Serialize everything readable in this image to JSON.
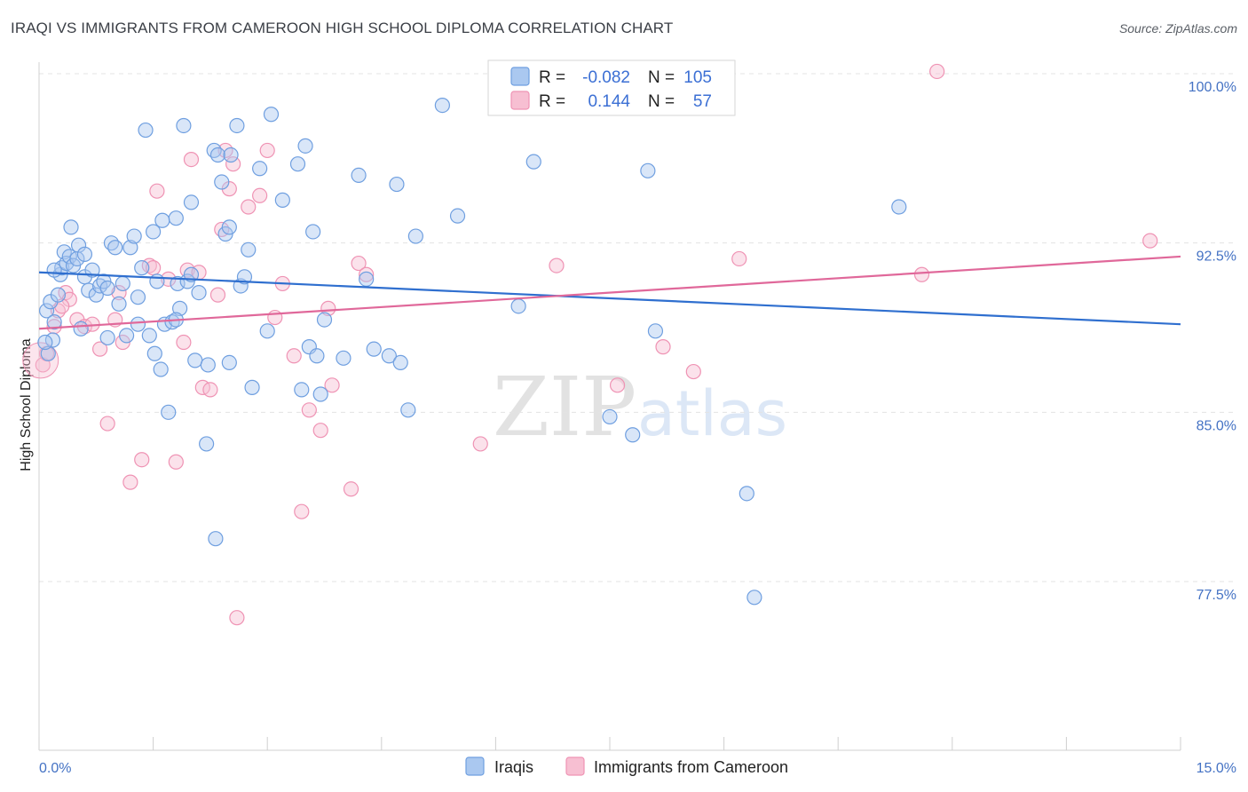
{
  "title": "IRAQI VS IMMIGRANTS FROM CAMEROON HIGH SCHOOL DIPLOMA CORRELATION CHART",
  "source": "Source: ZipAtlas.com",
  "watermark": {
    "zip": "ZIP",
    "atlas": "atlas"
  },
  "legend": {
    "row1": {
      "r_label": "R =",
      "r_value": "-0.082",
      "n_label": "N =",
      "n_value": "105"
    },
    "row2": {
      "r_label": "R =",
      "r_value": "0.144",
      "n_label": "N =",
      "n_value": "57"
    }
  },
  "bottom_legend": {
    "series1": "Iraqis",
    "series2": "Immigrants from Cameroon"
  },
  "colors": {
    "iraqi_fill": "#aac8f0",
    "iraqi_stroke": "#6f9fe0",
    "iraqi_line": "#2f6fcf",
    "cameroon_fill": "#f7bfd2",
    "cameroon_stroke": "#ef93b4",
    "cameroon_line": "#e0689a",
    "axis_label": "#4472c4",
    "grid": "#e3e3e3"
  },
  "chart_data": {
    "type": "scatter",
    "title": "IRAQI VS IMMIGRANTS FROM CAMEROON HIGH SCHOOL DIPLOMA CORRELATION CHART",
    "xlabel": "",
    "ylabel": "High School Diploma",
    "xlim": [
      0,
      15
    ],
    "ylim": [
      70.0,
      101.5
    ],
    "x_tick_labels": [
      "0.0%",
      "15.0%"
    ],
    "y_ticks": [
      77.5,
      85.0,
      92.5,
      100.0
    ],
    "y_tick_labels": [
      "77.5%",
      "85.0%",
      "92.5%",
      "100.0%"
    ],
    "series": [
      {
        "name": "Iraqis",
        "R": -0.082,
        "N": 105,
        "trend": {
          "x": [
            0,
            15
          ],
          "y": [
            91.2,
            88.9
          ]
        },
        "points": [
          [
            0.1,
            89.5
          ],
          [
            0.12,
            87.6
          ],
          [
            0.15,
            89.9
          ],
          [
            0.18,
            88.2
          ],
          [
            0.2,
            89.0
          ],
          [
            0.25,
            90.2
          ],
          [
            0.28,
            91.1
          ],
          [
            0.3,
            91.4
          ],
          [
            0.33,
            92.1
          ],
          [
            0.36,
            91.6
          ],
          [
            0.4,
            91.9
          ],
          [
            0.42,
            93.2
          ],
          [
            0.45,
            91.5
          ],
          [
            0.5,
            91.8
          ],
          [
            0.52,
            92.4
          ],
          [
            0.55,
            88.7
          ],
          [
            0.6,
            91.0
          ],
          [
            0.65,
            90.4
          ],
          [
            0.7,
            91.3
          ],
          [
            0.75,
            90.2
          ],
          [
            0.8,
            90.6
          ],
          [
            0.85,
            90.8
          ],
          [
            0.9,
            88.3
          ],
          [
            0.95,
            92.5
          ],
          [
            1.0,
            92.3
          ],
          [
            1.05,
            89.8
          ],
          [
            1.1,
            90.7
          ],
          [
            1.15,
            88.4
          ],
          [
            1.2,
            92.3
          ],
          [
            1.25,
            92.8
          ],
          [
            1.3,
            88.9
          ],
          [
            1.35,
            91.4
          ],
          [
            1.4,
            97.5
          ],
          [
            1.45,
            88.4
          ],
          [
            1.5,
            93.0
          ],
          [
            1.52,
            87.6
          ],
          [
            1.55,
            90.8
          ],
          [
            1.6,
            86.9
          ],
          [
            1.62,
            93.5
          ],
          [
            1.65,
            88.9
          ],
          [
            1.7,
            85.0
          ],
          [
            1.75,
            89.0
          ],
          [
            1.8,
            93.6
          ],
          [
            1.82,
            90.7
          ],
          [
            1.85,
            89.6
          ],
          [
            1.9,
            97.7
          ],
          [
            1.95,
            90.8
          ],
          [
            2.0,
            94.3
          ],
          [
            2.05,
            87.3
          ],
          [
            2.1,
            90.3
          ],
          [
            2.2,
            83.6
          ],
          [
            2.22,
            87.1
          ],
          [
            2.3,
            96.6
          ],
          [
            2.32,
            79.4
          ],
          [
            2.35,
            96.4
          ],
          [
            2.4,
            95.2
          ],
          [
            2.45,
            92.9
          ],
          [
            2.5,
            87.2
          ],
          [
            2.5,
            93.2
          ],
          [
            2.52,
            96.4
          ],
          [
            2.6,
            97.7
          ],
          [
            2.65,
            90.6
          ],
          [
            2.7,
            91.0
          ],
          [
            2.75,
            92.2
          ],
          [
            2.8,
            86.1
          ],
          [
            2.9,
            95.8
          ],
          [
            3.0,
            88.6
          ],
          [
            3.05,
            98.2
          ],
          [
            3.2,
            94.4
          ],
          [
            3.4,
            96.0
          ],
          [
            3.45,
            86.0
          ],
          [
            3.5,
            96.8
          ],
          [
            3.55,
            87.9
          ],
          [
            3.6,
            93.0
          ],
          [
            3.65,
            87.5
          ],
          [
            3.7,
            85.8
          ],
          [
            3.75,
            89.1
          ],
          [
            4.0,
            87.4
          ],
          [
            4.2,
            95.5
          ],
          [
            4.3,
            90.9
          ],
          [
            4.4,
            87.8
          ],
          [
            4.6,
            87.5
          ],
          [
            4.7,
            95.1
          ],
          [
            4.75,
            87.2
          ],
          [
            4.85,
            85.1
          ],
          [
            4.95,
            92.8
          ],
          [
            5.3,
            98.6
          ],
          [
            5.5,
            93.7
          ],
          [
            6.3,
            89.7
          ],
          [
            6.5,
            96.1
          ],
          [
            7.1,
            100.1
          ],
          [
            7.5,
            84.8
          ],
          [
            7.8,
            84.0
          ],
          [
            8.0,
            95.7
          ],
          [
            8.1,
            88.6
          ],
          [
            9.3,
            81.4
          ],
          [
            9.4,
            76.8
          ],
          [
            11.3,
            94.1
          ],
          [
            0.08,
            88.1
          ],
          [
            0.2,
            91.3
          ],
          [
            0.6,
            92.0
          ],
          [
            0.9,
            90.5
          ],
          [
            1.3,
            90.1
          ],
          [
            1.8,
            89.1
          ],
          [
            2.0,
            91.1
          ]
        ]
      },
      {
        "name": "Immigrants from Cameroon",
        "R": 0.144,
        "N": 57,
        "trend": {
          "x": [
            0,
            15
          ],
          "y": [
            88.7,
            91.9
          ]
        },
        "points": [
          [
            0.05,
            87.1
          ],
          [
            0.1,
            87.6
          ],
          [
            0.2,
            88.8
          ],
          [
            0.25,
            89.5
          ],
          [
            0.35,
            90.3
          ],
          [
            0.4,
            90.0
          ],
          [
            0.5,
            89.1
          ],
          [
            0.6,
            88.8
          ],
          [
            0.7,
            88.9
          ],
          [
            0.8,
            87.8
          ],
          [
            0.9,
            84.5
          ],
          [
            1.0,
            89.1
          ],
          [
            1.05,
            90.3
          ],
          [
            1.1,
            88.1
          ],
          [
            1.2,
            81.9
          ],
          [
            1.35,
            82.9
          ],
          [
            1.45,
            91.5
          ],
          [
            1.5,
            91.4
          ],
          [
            1.55,
            94.8
          ],
          [
            1.7,
            90.9
          ],
          [
            1.8,
            82.8
          ],
          [
            1.9,
            88.1
          ],
          [
            1.95,
            91.3
          ],
          [
            2.0,
            96.2
          ],
          [
            2.1,
            91.2
          ],
          [
            2.15,
            86.1
          ],
          [
            2.25,
            86.0
          ],
          [
            2.35,
            90.2
          ],
          [
            2.4,
            93.1
          ],
          [
            2.45,
            96.6
          ],
          [
            2.5,
            94.9
          ],
          [
            2.55,
            96.0
          ],
          [
            2.6,
            75.9
          ],
          [
            2.75,
            94.1
          ],
          [
            2.9,
            94.6
          ],
          [
            3.0,
            96.6
          ],
          [
            3.1,
            89.2
          ],
          [
            3.2,
            90.7
          ],
          [
            3.35,
            87.5
          ],
          [
            3.45,
            80.6
          ],
          [
            3.55,
            85.1
          ],
          [
            3.7,
            84.2
          ],
          [
            3.8,
            89.6
          ],
          [
            3.85,
            86.2
          ],
          [
            4.1,
            81.6
          ],
          [
            4.2,
            91.6
          ],
          [
            4.3,
            91.1
          ],
          [
            5.8,
            83.6
          ],
          [
            6.8,
            91.5
          ],
          [
            7.6,
            86.2
          ],
          [
            8.2,
            87.9
          ],
          [
            8.6,
            86.8
          ],
          [
            9.2,
            91.8
          ],
          [
            11.6,
            91.1
          ],
          [
            11.8,
            100.1
          ],
          [
            14.6,
            92.6
          ],
          [
            0.3,
            89.7
          ]
        ]
      }
    ]
  }
}
